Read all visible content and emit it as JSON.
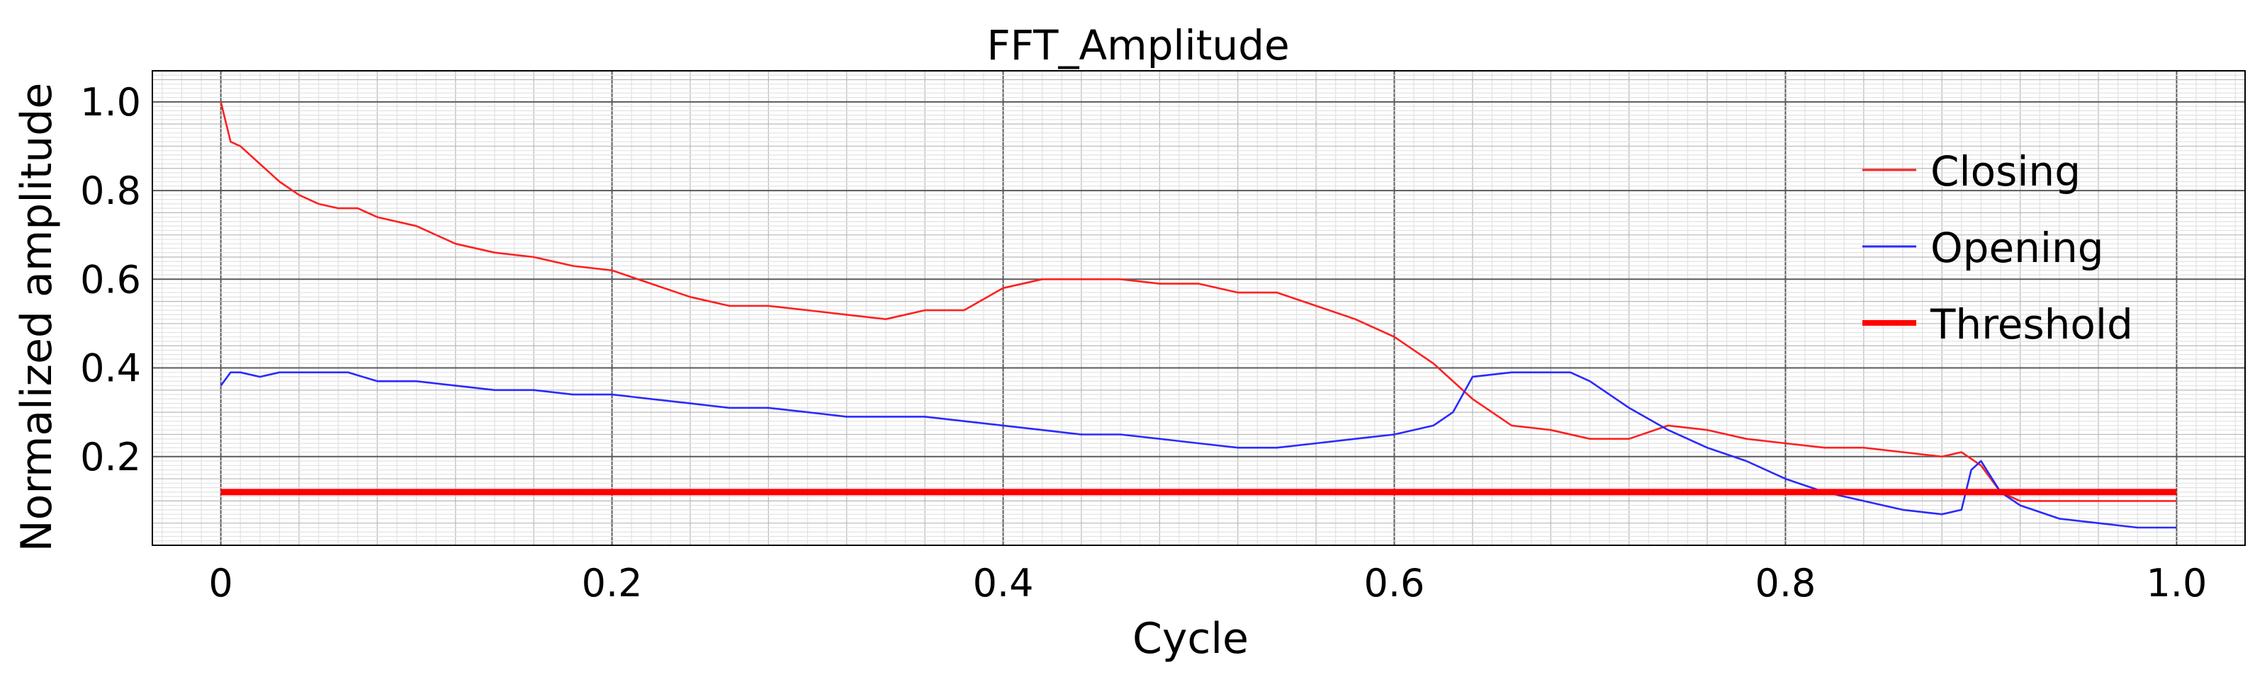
{
  "chart_data": {
    "type": "line",
    "title": "FFT_Amplitude",
    "xlabel": "Cycle",
    "ylabel": "Normalized amplitude",
    "xlim": [
      -0.035,
      1.035
    ],
    "ylim": [
      0.0,
      1.07
    ],
    "xticks": [
      0,
      0.2,
      0.4,
      0.6,
      0.8,
      1.0
    ],
    "xtick_labels": [
      "0",
      "0.2",
      "0.4",
      "0.6",
      "0.8",
      "1.0"
    ],
    "yticks": [
      0.2,
      0.4,
      0.6,
      0.8,
      1.0
    ],
    "ytick_labels": [
      "0.2",
      "0.4",
      "0.6",
      "0.8",
      "1.0"
    ],
    "grid": true,
    "legend_position": "right",
    "series": [
      {
        "name": "Closing",
        "color": "#ff2020",
        "x": [
          0,
          0.005,
          0.01,
          0.02,
          0.03,
          0.04,
          0.05,
          0.06,
          0.07,
          0.08,
          0.1,
          0.12,
          0.14,
          0.16,
          0.18,
          0.2,
          0.22,
          0.24,
          0.26,
          0.28,
          0.3,
          0.32,
          0.34,
          0.36,
          0.38,
          0.4,
          0.42,
          0.44,
          0.46,
          0.48,
          0.5,
          0.52,
          0.54,
          0.56,
          0.58,
          0.6,
          0.62,
          0.64,
          0.66,
          0.68,
          0.7,
          0.72,
          0.74,
          0.76,
          0.78,
          0.8,
          0.82,
          0.84,
          0.86,
          0.88,
          0.89,
          0.9,
          0.91,
          0.92,
          0.94,
          0.96,
          0.98,
          1.0
        ],
        "y": [
          1.0,
          0.91,
          0.9,
          0.86,
          0.82,
          0.79,
          0.77,
          0.76,
          0.76,
          0.74,
          0.72,
          0.68,
          0.66,
          0.65,
          0.63,
          0.62,
          0.59,
          0.56,
          0.54,
          0.54,
          0.53,
          0.52,
          0.51,
          0.53,
          0.53,
          0.58,
          0.6,
          0.6,
          0.6,
          0.59,
          0.59,
          0.57,
          0.57,
          0.54,
          0.51,
          0.47,
          0.41,
          0.33,
          0.27,
          0.26,
          0.24,
          0.24,
          0.27,
          0.26,
          0.24,
          0.23,
          0.22,
          0.22,
          0.21,
          0.2,
          0.21,
          0.18,
          0.12,
          0.1,
          0.1,
          0.1,
          0.1,
          0.1
        ]
      },
      {
        "name": "Opening",
        "color": "#2a2aff",
        "x": [
          0,
          0.005,
          0.01,
          0.02,
          0.03,
          0.04,
          0.05,
          0.06,
          0.065,
          0.08,
          0.1,
          0.12,
          0.14,
          0.16,
          0.18,
          0.2,
          0.22,
          0.24,
          0.26,
          0.28,
          0.3,
          0.32,
          0.34,
          0.36,
          0.38,
          0.4,
          0.42,
          0.44,
          0.46,
          0.48,
          0.5,
          0.52,
          0.54,
          0.56,
          0.58,
          0.6,
          0.62,
          0.63,
          0.64,
          0.66,
          0.68,
          0.69,
          0.7,
          0.72,
          0.74,
          0.76,
          0.78,
          0.8,
          0.82,
          0.84,
          0.86,
          0.88,
          0.89,
          0.895,
          0.9,
          0.91,
          0.92,
          0.94,
          0.96,
          0.98,
          1.0
        ],
        "y": [
          0.36,
          0.39,
          0.39,
          0.38,
          0.39,
          0.39,
          0.39,
          0.39,
          0.39,
          0.37,
          0.37,
          0.36,
          0.35,
          0.35,
          0.34,
          0.34,
          0.33,
          0.32,
          0.31,
          0.31,
          0.3,
          0.29,
          0.29,
          0.29,
          0.28,
          0.27,
          0.26,
          0.25,
          0.25,
          0.24,
          0.23,
          0.22,
          0.22,
          0.23,
          0.24,
          0.25,
          0.27,
          0.3,
          0.38,
          0.39,
          0.39,
          0.39,
          0.37,
          0.31,
          0.26,
          0.22,
          0.19,
          0.15,
          0.12,
          0.1,
          0.08,
          0.07,
          0.08,
          0.17,
          0.19,
          0.12,
          0.09,
          0.06,
          0.05,
          0.04,
          0.04
        ]
      },
      {
        "name": "Threshold",
        "color": "#ff0000",
        "x": [
          0,
          1.0
        ],
        "y": [
          0.12,
          0.12
        ]
      }
    ]
  }
}
